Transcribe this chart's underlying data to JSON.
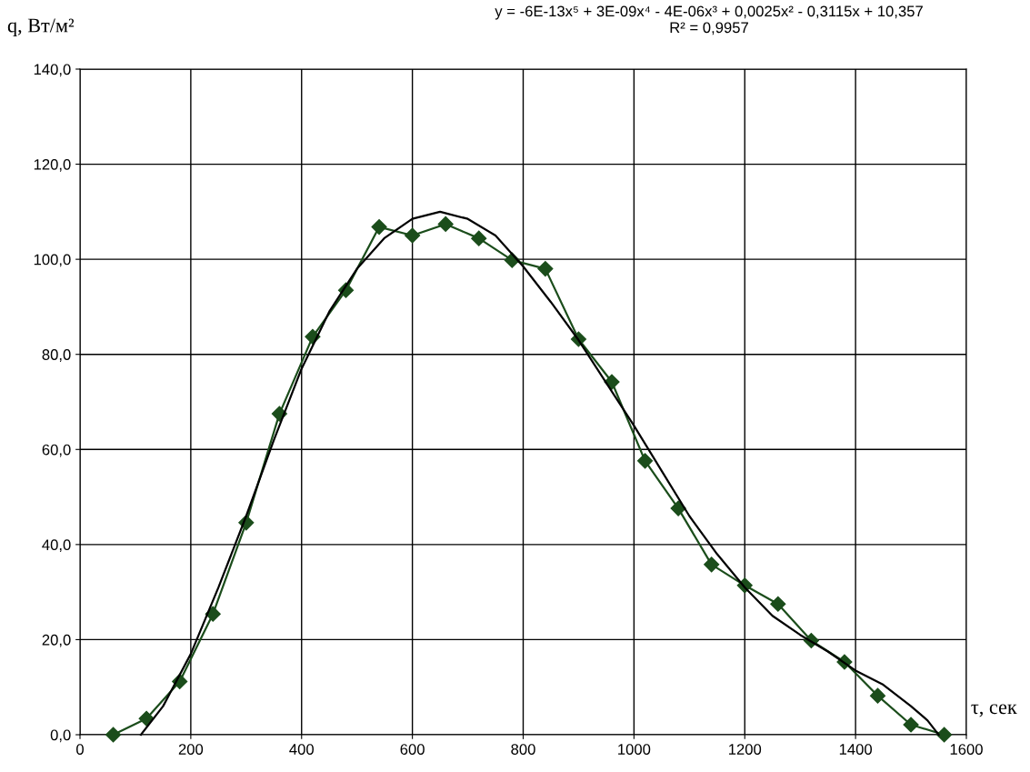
{
  "chart_data": {
    "type": "line",
    "xlabel": "τ, сек",
    "ylabel": "q, Вт/м²",
    "annotations": [
      "y = -6E-13x⁵ + 3E-09x⁴ - 4E-06x³ + 0,0025x² - 0,3115x + 10,357\nR² = 0,9957"
    ],
    "x": [
      60,
      120,
      180,
      240,
      300,
      360,
      420,
      480,
      540,
      600,
      660,
      720,
      780,
      840,
      900,
      960,
      1020,
      1080,
      1140,
      1200,
      1260,
      1320,
      1380,
      1440,
      1500,
      1560
    ],
    "series": [
      {
        "color": "#1b4d1b",
        "marker": "diamond",
        "values": [
          0,
          3.4,
          11.2,
          25.4,
          44.6,
          67.5,
          83.7,
          93.5,
          106.8,
          105.0,
          107.4,
          104.4,
          99.8,
          98.0,
          83.2,
          74.2,
          57.6,
          47.6,
          35.8,
          31.4,
          27.5,
          19.8,
          15.3,
          8.2,
          2.1,
          0
        ]
      },
      {
        "color": "#000000",
        "marker": "none",
        "x": [
          110,
          150,
          200,
          250,
          300,
          350,
          400,
          450,
          500,
          550,
          600,
          650,
          700,
          750,
          800,
          850,
          900,
          950,
          1000,
          1050,
          1100,
          1150,
          1200,
          1250,
          1300,
          1350,
          1400,
          1450,
          1500,
          1530,
          1550
        ],
        "values": [
          0,
          6,
          17,
          31,
          46,
          62,
          77,
          89,
          98,
          104.5,
          108.5,
          110,
          108.5,
          105,
          98.5,
          91,
          83,
          74,
          65,
          55.5,
          46,
          38,
          31,
          25,
          21,
          17.5,
          13.5,
          10.5,
          6,
          3,
          0
        ]
      }
    ],
    "xlim": [
      0,
      1600
    ],
    "xticks": [
      0,
      200,
      400,
      600,
      800,
      1000,
      1200,
      1400,
      1600
    ],
    "ylim": [
      0,
      140
    ],
    "yticks": [
      {
        "value": 0,
        "label": "0,0"
      },
      {
        "value": 20,
        "label": "20,0"
      },
      {
        "value": 40,
        "label": "40,0"
      },
      {
        "value": 60,
        "label": "60,0"
      },
      {
        "value": 80,
        "label": "80,0"
      },
      {
        "value": 100,
        "label": "100,0"
      },
      {
        "value": 120,
        "label": "120,0"
      },
      {
        "value": 140,
        "label": "140,0"
      }
    ],
    "grid": true,
    "legend": false,
    "line_style": "solid"
  }
}
